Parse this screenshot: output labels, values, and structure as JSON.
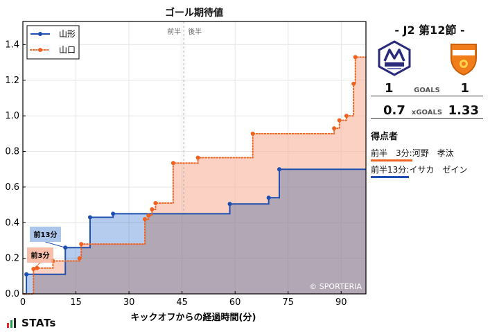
{
  "chart_data": {
    "type": "step-area",
    "title": "ゴール期待値",
    "xlabel": "キックオフからの経過時間(分)",
    "ylabel": "",
    "xlim": [
      0,
      97
    ],
    "ylim": [
      0,
      1.53
    ],
    "xticks": [
      0,
      15,
      30,
      45,
      60,
      75,
      90
    ],
    "yticks": [
      0.0,
      0.2,
      0.4,
      0.6,
      0.8,
      1.0,
      1.2,
      1.4
    ],
    "halftime": {
      "x": 45.5,
      "first_label": "前半",
      "second_label": "後半"
    },
    "legend_position": "top-left",
    "series": [
      {
        "name": "山形",
        "color": "#1e4fb0",
        "fill": "#9dbbe8",
        "style": "solid",
        "points": [
          [
            1,
            0.11
          ],
          [
            12,
            0.26
          ],
          [
            19,
            0.43
          ],
          [
            25.5,
            0.45
          ],
          [
            58.5,
            0.505
          ],
          [
            69.5,
            0.54
          ],
          [
            72.5,
            0.7
          ]
        ]
      },
      {
        "name": "山口",
        "color": "#f0621f",
        "fill": "#f7b39a",
        "style": "dotted",
        "points": [
          [
            3,
            0.14
          ],
          [
            4,
            0.145
          ],
          [
            8.5,
            0.185
          ],
          [
            16,
            0.2
          ],
          [
            16.5,
            0.28
          ],
          [
            34.5,
            0.42
          ],
          [
            35.5,
            0.44
          ],
          [
            36.5,
            0.475
          ],
          [
            37.5,
            0.51
          ],
          [
            42.5,
            0.735
          ],
          [
            49.5,
            0.765
          ],
          [
            65,
            0.9
          ],
          [
            88,
            0.93
          ],
          [
            89.5,
            0.975
          ],
          [
            91.5,
            1.0
          ],
          [
            93.5,
            1.18
          ],
          [
            94,
            1.33
          ]
        ]
      }
    ],
    "annotations": [
      {
        "label": "前13分",
        "x": 12,
        "y": 0.26,
        "series": "山形"
      },
      {
        "label": "前3分",
        "x": 3,
        "y": 0.14,
        "series": "山口"
      }
    ],
    "watermark": "© SPORTERIA"
  },
  "match": {
    "title": "- J2 第12節 -",
    "home": {
      "name": "山形",
      "crest": "montedio-crest-icon",
      "color": "#2a2a7a",
      "goals": "1",
      "xg": "0.7"
    },
    "away": {
      "name": "山口",
      "crest": "renofa-crest-icon",
      "color": "#f07d1a",
      "goals": "1",
      "xg": "1.33"
    },
    "goals_label": "GOALS",
    "xg_label": "xGOALS"
  },
  "scorers": {
    "heading": "得点者",
    "items": [
      {
        "time": "前半　3分:",
        "player": "河野　孝汰",
        "team": "away"
      },
      {
        "time": "前半13分:",
        "player": "イサカ　ゼイン",
        "team": "home"
      }
    ]
  },
  "brand": {
    "text": "STATs"
  }
}
